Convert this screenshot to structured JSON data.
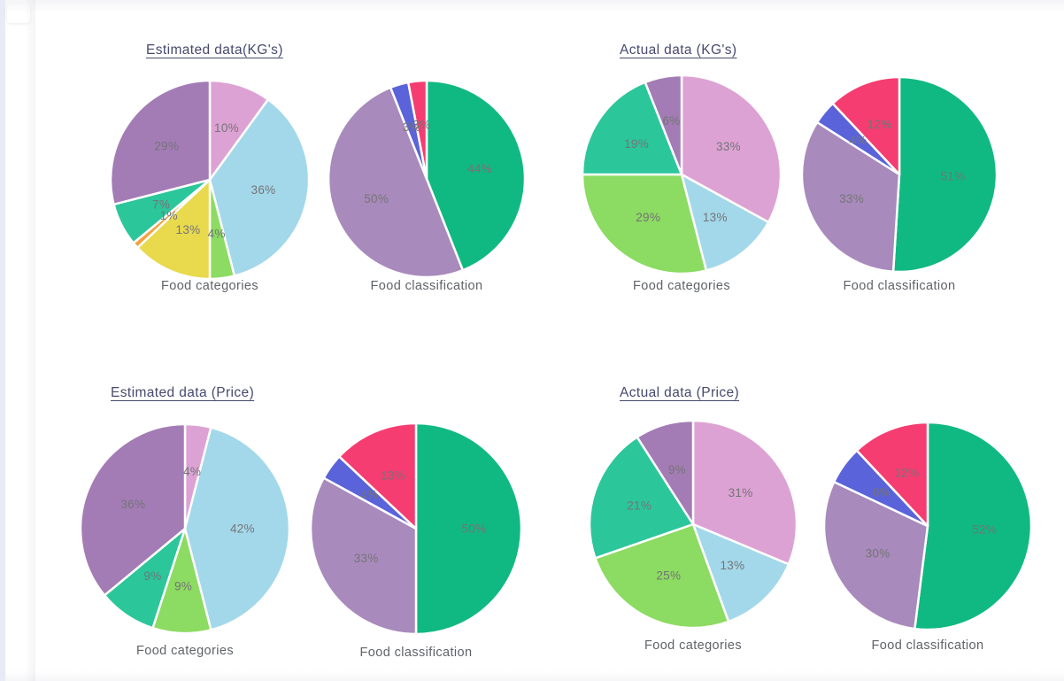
{
  "theme": {
    "title_color": "#474a6d",
    "caption_color": "#5f6368",
    "label_color": "#747476",
    "slice_border_color": "#ffffff",
    "rail_color": "#e9ebf4",
    "background_color": "#ffffff"
  },
  "chart_data": [
    {
      "section_title": "Estimated data(KG's)",
      "pies": [
        {
          "type": "pie",
          "title": "Food categories",
          "values": [
            10,
            36,
            4,
            13,
            1,
            7,
            29
          ],
          "labels": [
            "10%",
            "36%",
            "4%",
            "13%",
            "1%",
            "7%",
            "29%"
          ],
          "colors": [
            "#dda2d4",
            "#a3d8ea",
            "#8cdb62",
            "#e8d94d",
            "#f2a33c",
            "#2cc69b",
            "#a37cb5"
          ]
        },
        {
          "type": "pie",
          "title": "Food classification",
          "values": [
            44,
            50,
            3,
            3
          ],
          "labels": [
            "44%",
            "50%",
            "3%",
            "3%"
          ],
          "colors": [
            "#10b981",
            "#a98abc",
            "#5a63d9",
            "#f53d72"
          ]
        }
      ]
    },
    {
      "section_title": "Actual data (KG's)",
      "pies": [
        {
          "type": "pie",
          "title": "Food categories",
          "values": [
            33,
            13,
            29,
            19,
            6
          ],
          "labels": [
            "33%",
            "13%",
            "29%",
            "19%",
            "6%"
          ],
          "colors": [
            "#dda2d4",
            "#a3d8ea",
            "#8cdb62",
            "#2cc69b",
            "#a37cb5"
          ]
        },
        {
          "type": "pie",
          "title": "Food classification",
          "values": [
            51,
            33,
            4,
            12
          ],
          "labels": [
            "51%",
            "33%",
            "4%",
            "12%"
          ],
          "colors": [
            "#10b981",
            "#a98abc",
            "#5a63d9",
            "#f53d72"
          ]
        }
      ]
    },
    {
      "section_title": "Estimated data (Price)",
      "pies": [
        {
          "type": "pie",
          "title": "Food categories",
          "values": [
            4,
            42,
            9,
            9,
            36
          ],
          "labels": [
            "4%",
            "42%",
            "9%",
            "9%",
            "36%"
          ],
          "colors": [
            "#dda2d4",
            "#a3d8ea",
            "#8cdb62",
            "#2cc69b",
            "#a37cb5"
          ]
        },
        {
          "type": "pie",
          "title": "Food classification",
          "values": [
            50,
            33,
            4,
            13
          ],
          "labels": [
            "50%",
            "33%",
            "4%",
            "13%"
          ],
          "colors": [
            "#10b981",
            "#a98abc",
            "#5a63d9",
            "#f53d72"
          ]
        }
      ]
    },
    {
      "section_title": "Actual data (Price)",
      "pies": [
        {
          "type": "pie",
          "title": "Food categories",
          "values": [
            31,
            13,
            25,
            21,
            9
          ],
          "labels": [
            "31%",
            "13%",
            "25%",
            "21%",
            "9%"
          ],
          "colors": [
            "#dda2d4",
            "#a3d8ea",
            "#8cdb62",
            "#2cc69b",
            "#a37cb5"
          ]
        },
        {
          "type": "pie",
          "title": "Food classification",
          "values": [
            52,
            30,
            6,
            12
          ],
          "labels": [
            "52%",
            "30%",
            "6%",
            "12%"
          ],
          "colors": [
            "#10b981",
            "#a98abc",
            "#5a63d9",
            "#f53d72"
          ]
        }
      ]
    }
  ]
}
